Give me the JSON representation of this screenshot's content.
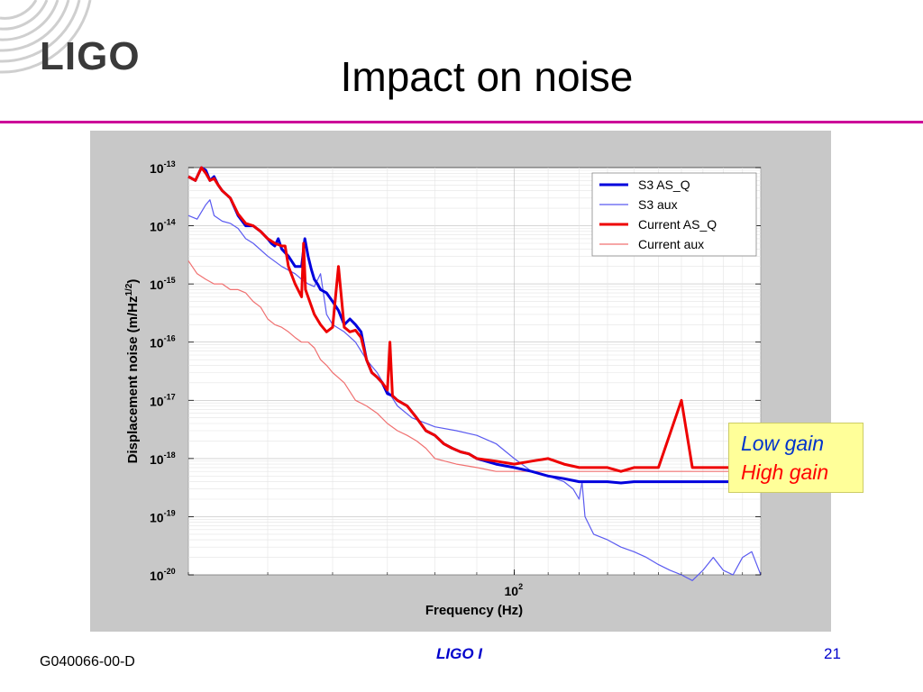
{
  "header": {
    "logo_text": "LIGO",
    "title": "Impact on noise",
    "rule_color": "#cc0099"
  },
  "note": {
    "low": "Low gain",
    "high": "High gain",
    "low_color": "#0033cc",
    "high_color": "#ff0000",
    "background": "#ffff99"
  },
  "footer": {
    "doc_id": "G040066-00-D",
    "center": "LIGO I",
    "page": "21"
  },
  "chart_data": {
    "type": "line",
    "title": "",
    "xlabel": "Frequency (Hz)",
    "ylabel_prefix": "Displacement noise (m/Hz",
    "ylabel_sup": "1/2",
    "ylabel_suffix": ")",
    "xscale": "log",
    "yscale": "log",
    "xlim": [
      40,
      200
    ],
    "ylim": [
      1e-20,
      1e-13
    ],
    "grid": true,
    "legend_position": "top-right",
    "x_tick_labels": [
      {
        "value": 100,
        "base": "10",
        "exp": "2"
      }
    ],
    "y_tick_labels": [
      {
        "value": 1e-13,
        "base": "10",
        "exp": "-13"
      },
      {
        "value": 1e-14,
        "base": "10",
        "exp": "-14"
      },
      {
        "value": 1e-15,
        "base": "10",
        "exp": "-15"
      },
      {
        "value": 1e-16,
        "base": "10",
        "exp": "-16"
      },
      {
        "value": 1e-17,
        "base": "10",
        "exp": "-17"
      },
      {
        "value": 1e-18,
        "base": "10",
        "exp": "-18"
      },
      {
        "value": 1e-19,
        "base": "10",
        "exp": "-19"
      },
      {
        "value": 1e-20,
        "base": "10",
        "exp": "-20"
      }
    ],
    "series": [
      {
        "name": "S3 AS_Q",
        "color": "#0000dd",
        "width": 3,
        "x": [
          40,
          40.8,
          41.5,
          42,
          42.5,
          43,
          43.5,
          44,
          45,
          46,
          47,
          48,
          49,
          50,
          50.5,
          51,
          51.5,
          52,
          53,
          54,
          55,
          55.5,
          56,
          56.5,
          57,
          57.5,
          58,
          59,
          60,
          61,
          62,
          63,
          64,
          65,
          66,
          67,
          68,
          69,
          70,
          71,
          72,
          74,
          76,
          78,
          80,
          82,
          84,
          86,
          88,
          90,
          95,
          100,
          105,
          110,
          115,
          120,
          125,
          130,
          135,
          140,
          150,
          160,
          170,
          180,
          190,
          200
        ],
        "y": [
          7e-14,
          6e-14,
          1e-13,
          9e-14,
          6e-14,
          7e-14,
          5e-14,
          4e-14,
          3e-14,
          1.5e-14,
          1e-14,
          1e-14,
          8e-15,
          6e-15,
          5e-15,
          4.5e-15,
          6e-15,
          4e-15,
          3e-15,
          2e-15,
          2e-15,
          6e-15,
          3e-15,
          1.8e-15,
          1.2e-15,
          1e-15,
          8e-16,
          7e-16,
          5e-16,
          3.5e-16,
          2e-16,
          2.5e-16,
          2e-16,
          1.5e-16,
          5e-17,
          3e-17,
          2.5e-17,
          2e-17,
          1.3e-17,
          1.2e-17,
          1e-17,
          8e-18,
          5e-18,
          3e-18,
          2.5e-18,
          1.8e-18,
          1.5e-18,
          1.3e-18,
          1.2e-18,
          1e-18,
          8e-19,
          7e-19,
          6e-19,
          5e-19,
          4.5e-19,
          4e-19,
          4e-19,
          4e-19,
          3.8e-19,
          4e-19,
          4e-19,
          4e-19,
          4e-19,
          4e-19,
          4e-19,
          4e-19
        ]
      },
      {
        "name": "S3 aux",
        "color": "#5a5af0",
        "width": 1.2,
        "x": [
          40,
          41,
          42,
          42.5,
          43,
          44,
          45,
          46,
          47,
          48,
          50,
          52,
          54,
          55,
          56,
          57,
          58,
          59,
          60,
          62,
          64,
          66,
          68,
          70,
          72,
          75,
          80,
          85,
          90,
          95,
          100,
          105,
          110,
          115,
          118,
          120,
          121,
          122,
          125,
          130,
          135,
          140,
          145,
          150,
          155,
          160,
          165,
          170,
          175,
          180,
          185,
          190,
          195,
          200
        ],
        "y": [
          1.5e-14,
          1.3e-14,
          2.3e-14,
          2.8e-14,
          1.5e-14,
          1.2e-14,
          1.1e-14,
          9e-15,
          6e-15,
          5e-15,
          3e-15,
          2e-15,
          1.5e-15,
          1.2e-15,
          1e-15,
          9e-16,
          1.5e-15,
          3e-16,
          2e-16,
          1.5e-16,
          1e-16,
          5e-17,
          3e-17,
          1.5e-17,
          8e-18,
          5e-18,
          3.5e-18,
          3e-18,
          2.5e-18,
          1.8e-18,
          1e-18,
          6e-19,
          5e-19,
          4e-19,
          3e-19,
          2e-19,
          4e-19,
          1e-19,
          5e-20,
          4e-20,
          3e-20,
          2.5e-20,
          2e-20,
          1.5e-20,
          1.2e-20,
          1e-20,
          8e-21,
          1.2e-20,
          2e-20,
          1.2e-20,
          1e-20,
          2e-20,
          2.5e-20,
          1e-20
        ]
      },
      {
        "name": "Current AS_Q",
        "color": "#ee0000",
        "width": 3,
        "x": [
          40,
          40.8,
          41.5,
          42,
          42.5,
          43,
          43.5,
          44,
          45,
          46,
          47,
          48,
          49,
          50,
          51,
          52,
          52.5,
          53,
          54,
          55,
          55.3,
          55.6,
          56,
          57,
          58,
          59,
          60,
          61,
          62,
          63,
          64,
          65,
          66,
          67,
          68,
          69,
          70,
          70.5,
          71,
          72,
          74,
          76,
          78,
          80,
          82,
          84,
          86,
          88,
          90,
          95,
          100,
          105,
          110,
          115,
          120,
          125,
          130,
          135,
          140,
          150,
          160,
          165,
          170,
          175,
          180,
          190,
          200
        ],
        "y": [
          7e-14,
          6e-14,
          1e-13,
          8e-14,
          6e-14,
          6.5e-14,
          5e-14,
          4e-14,
          3e-14,
          1.6e-14,
          1.1e-14,
          1e-14,
          8e-15,
          6e-15,
          5e-15,
          4.5e-15,
          4.5e-15,
          2e-15,
          1e-15,
          6e-16,
          5e-15,
          8e-16,
          6e-16,
          3e-16,
          2e-16,
          1.5e-16,
          1.8e-16,
          2e-15,
          1.8e-16,
          1.5e-16,
          1.6e-16,
          1.2e-16,
          5e-17,
          3e-17,
          2.5e-17,
          2e-17,
          1.5e-17,
          1e-16,
          1.2e-17,
          1e-17,
          8e-18,
          5e-18,
          3e-18,
          2.5e-18,
          1.8e-18,
          1.5e-18,
          1.3e-18,
          1.2e-18,
          1e-18,
          9e-19,
          8e-19,
          9e-19,
          1e-18,
          8e-19,
          7e-19,
          7e-19,
          7e-19,
          6e-19,
          7e-19,
          7e-19,
          1e-17,
          7e-19,
          7e-19,
          7e-19,
          7e-19,
          7e-19,
          7e-19
        ]
      },
      {
        "name": "Current aux",
        "color": "#f07070",
        "width": 1.2,
        "x": [
          40,
          41,
          42,
          43,
          44,
          45,
          46,
          47,
          48,
          49,
          50,
          51,
          52,
          53,
          54,
          55,
          56,
          57,
          58,
          59,
          60,
          62,
          64,
          66,
          68,
          70,
          72,
          74,
          76,
          78,
          80,
          85,
          90,
          95,
          100,
          110,
          120,
          130,
          140,
          150,
          160,
          170,
          180,
          190,
          200
        ],
        "y": [
          2.5e-15,
          1.5e-15,
          1.2e-15,
          1e-15,
          1e-15,
          8e-16,
          8e-16,
          7e-16,
          5e-16,
          4e-16,
          2.5e-16,
          2e-16,
          1.8e-16,
          1.5e-16,
          1.2e-16,
          1e-16,
          1e-16,
          8e-17,
          5e-17,
          4e-17,
          3e-17,
          2e-17,
          1e-17,
          8e-18,
          6e-18,
          4e-18,
          3e-18,
          2.5e-18,
          2e-18,
          1.5e-18,
          1e-18,
          8e-19,
          7e-19,
          6e-19,
          6e-19,
          6e-19,
          6e-19,
          6e-19,
          6e-19,
          6e-19,
          6e-19,
          6e-19,
          6e-19,
          6e-19,
          6e-19
        ]
      }
    ]
  }
}
